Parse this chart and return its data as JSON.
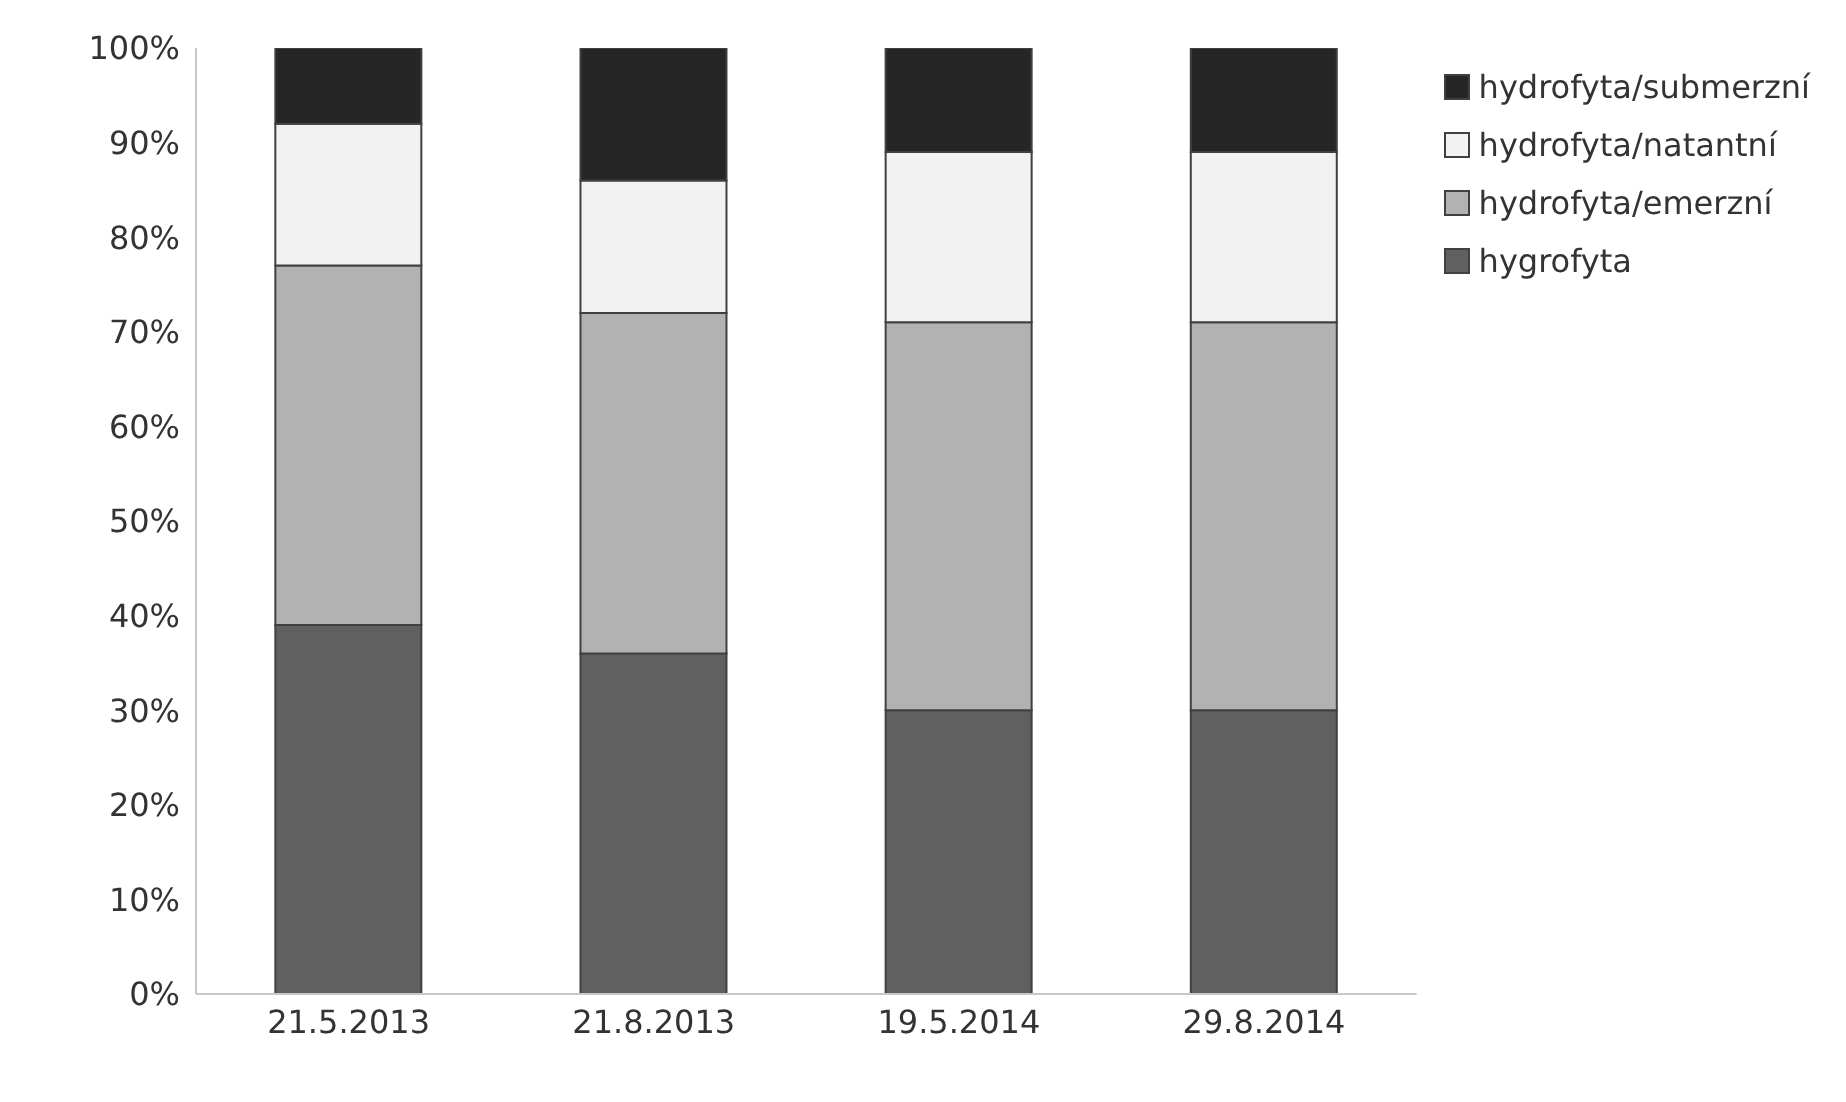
{
  "chart_data": {
    "type": "bar",
    "stacked": true,
    "categories": [
      "21.5.2013",
      "21.8.2013",
      "19.5.2014",
      "29.8.2014"
    ],
    "series": [
      {
        "name": "hygrofyta",
        "color": "#606060",
        "values": [
          39,
          36,
          30,
          30
        ]
      },
      {
        "name": "hydrofyta/emerzní",
        "color": "#b2b2b2",
        "values": [
          38,
          36,
          41,
          41
        ]
      },
      {
        "name": "hydrofyta/natantní",
        "color": "#f2f2f2",
        "values": [
          15,
          14,
          18,
          18
        ]
      },
      {
        "name": "hydrofyta/submerzní",
        "color": "#262626",
        "values": [
          8,
          14,
          11,
          11
        ]
      }
    ],
    "ylim": [
      0,
      100
    ],
    "yticks": [
      {
        "value": 0,
        "label": "0%"
      },
      {
        "value": 10,
        "label": "10%"
      },
      {
        "value": 20,
        "label": "20%"
      },
      {
        "value": 30,
        "label": "30%"
      },
      {
        "value": 40,
        "label": "40%"
      },
      {
        "value": 50,
        "label": "50%"
      },
      {
        "value": 60,
        "label": "60%"
      },
      {
        "value": 70,
        "label": "70%"
      },
      {
        "value": 80,
        "label": "80%"
      },
      {
        "value": 90,
        "label": "90%"
      },
      {
        "value": 100,
        "label": "100%"
      }
    ],
    "grid": false,
    "legend": "right"
  }
}
